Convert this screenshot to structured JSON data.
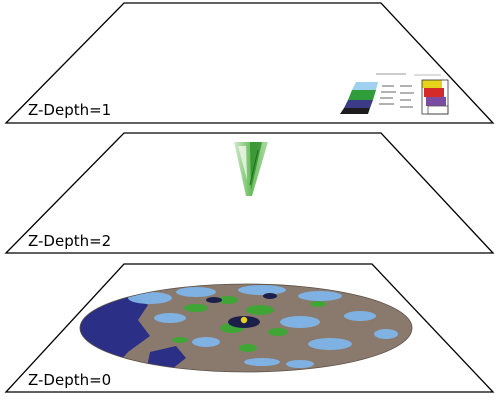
{
  "layers": [
    {
      "id": "top",
      "label": "Z-Depth=1",
      "content": "legend-panel"
    },
    {
      "id": "middle",
      "label": "Z-Depth=2",
      "content": "green-cone-object"
    },
    {
      "id": "bottom",
      "label": "Z-Depth=0",
      "content": "radar-map-disk"
    }
  ],
  "colors": {
    "plane_outline": "#000000",
    "plane_fill": "#ffffff",
    "radar_base": "#8a7a6e",
    "radar_water": "#2c2f86",
    "radar_light_blue": "#7fb6e8",
    "radar_green": "#3fa535",
    "radar_yellow": "#e8d21a",
    "cone_green": "#4caf3f",
    "legend_red": "#d62a2a",
    "legend_purple": "#7a4ba0",
    "legend_yellow": "#e6d21a",
    "legend_green": "#2f9e3a"
  }
}
